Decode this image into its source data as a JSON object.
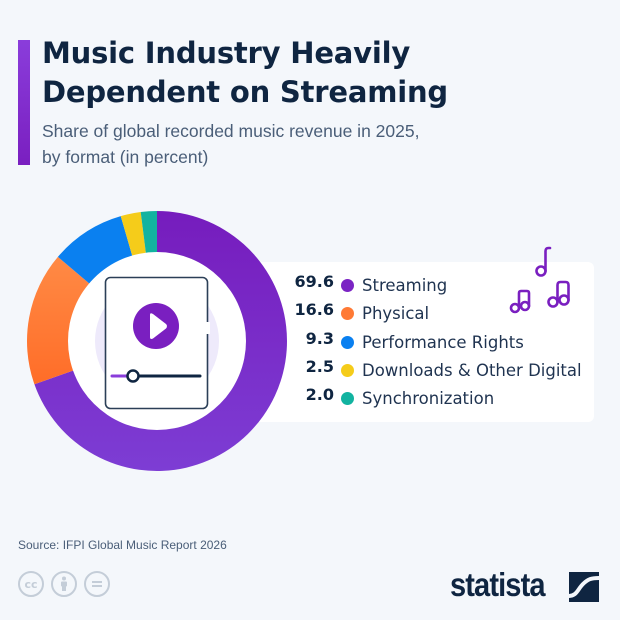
{
  "header": {
    "title_line1": "Music Industry Heavily",
    "title_line2": "Dependent on Streaming",
    "subtitle_line1": "Share of global recorded music revenue in 2025,",
    "subtitle_line2": "by format (in percent)"
  },
  "legend": {
    "items": [
      {
        "value": "69.6",
        "label": "Streaming",
        "color": "#7b24c4"
      },
      {
        "value": "16.6",
        "label": "Physical",
        "color": "#ff7a35"
      },
      {
        "value": "9.3",
        "label": "Performance Rights",
        "color": "#0a80f0"
      },
      {
        "value": "2.5",
        "label": "Downloads & Other Digital",
        "color": "#f5cc1a"
      },
      {
        "value": "2.0",
        "label": "Synchronization",
        "color": "#12b3a0"
      }
    ]
  },
  "footer": {
    "source": "Source: IFPI Global Music Report 2026",
    "cc_icons": [
      "cc",
      "by",
      "nd"
    ],
    "logo": "statista"
  },
  "chart_data": {
    "type": "pie",
    "subtype": "donut",
    "title": "Music Industry Heavily Dependent on Streaming",
    "subtitle": "Share of global recorded music revenue in 2025, by format (in percent)",
    "categories": [
      "Streaming",
      "Physical",
      "Performance Rights",
      "Downloads & Other Digital",
      "Synchronization"
    ],
    "values": [
      69.6,
      16.6,
      9.3,
      2.5,
      2.0
    ],
    "colors": [
      "#7b24c4",
      "#ff7a35",
      "#0a80f0",
      "#f5cc1a",
      "#12b3a0"
    ],
    "unit": "percent",
    "legend_position": "right",
    "source": "IFPI Global Music Report 2026"
  }
}
